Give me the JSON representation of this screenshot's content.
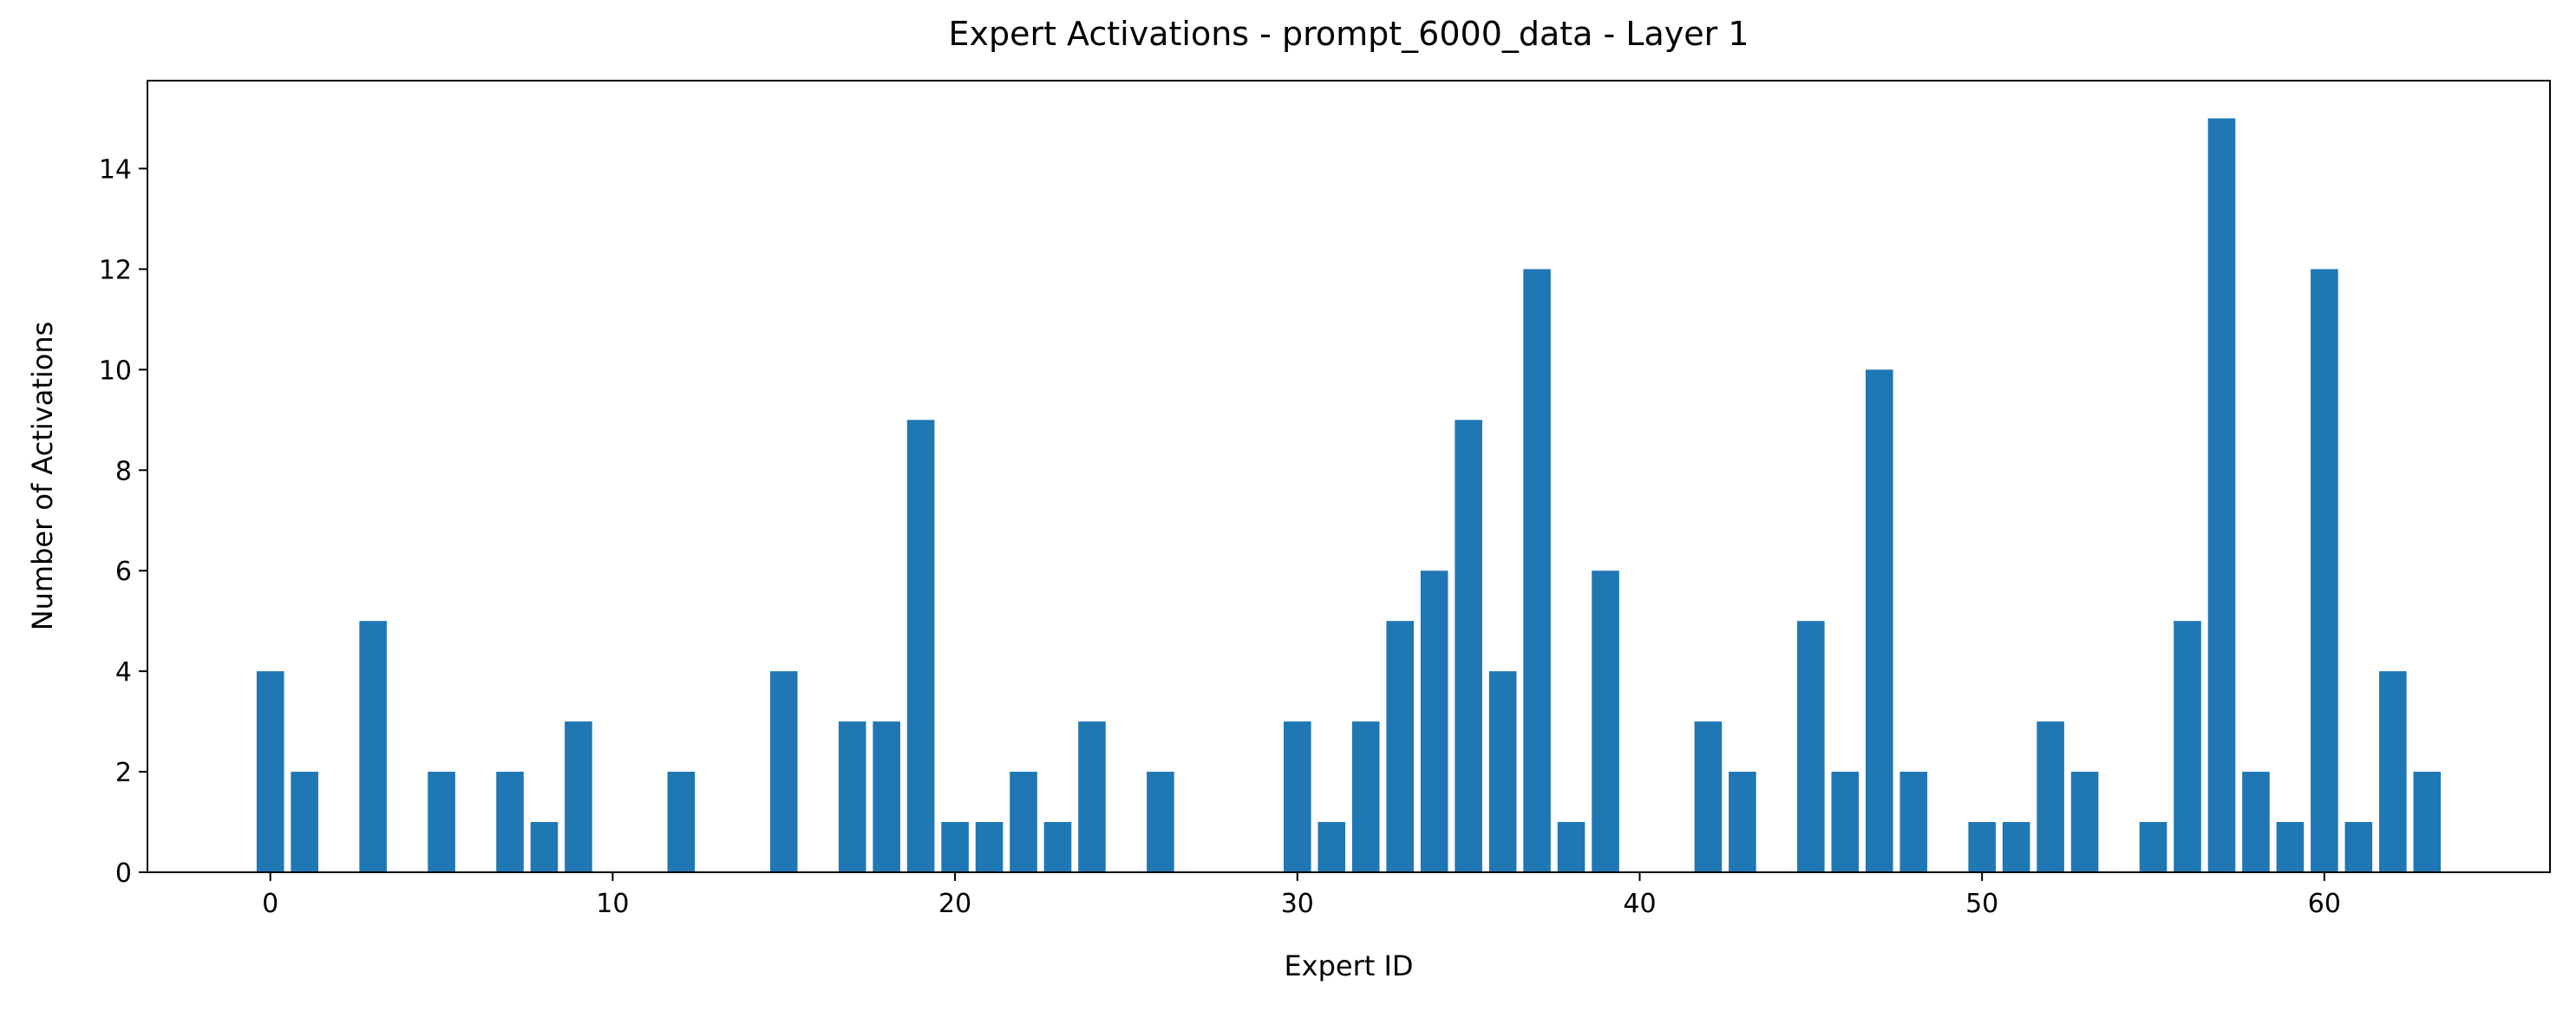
{
  "chart_data": {
    "type": "bar",
    "title": "Expert Activations - prompt_6000_data - Layer 1",
    "x_label": "Expert ID",
    "y_label": "Number of Activations",
    "x": [
      0,
      1,
      2,
      3,
      4,
      5,
      6,
      7,
      8,
      9,
      10,
      11,
      12,
      13,
      14,
      15,
      16,
      17,
      18,
      19,
      20,
      21,
      22,
      23,
      24,
      25,
      26,
      27,
      28,
      29,
      30,
      31,
      32,
      33,
      34,
      35,
      36,
      37,
      38,
      39,
      40,
      41,
      42,
      43,
      44,
      45,
      46,
      47,
      48,
      49,
      50,
      51,
      52,
      53,
      54,
      55,
      56,
      57,
      58,
      59,
      60,
      61,
      62,
      63
    ],
    "values": [
      4,
      2,
      0,
      5,
      0,
      2,
      0,
      2,
      1,
      3,
      0,
      0,
      2,
      0,
      0,
      4,
      0,
      3,
      3,
      9,
      1,
      1,
      2,
      1,
      3,
      0,
      2,
      0,
      0,
      0,
      3,
      1,
      3,
      5,
      6,
      9,
      4,
      12,
      1,
      6,
      0,
      0,
      3,
      2,
      0,
      5,
      2,
      10,
      2,
      0,
      1,
      1,
      3,
      2,
      0,
      1,
      5,
      15,
      2,
      1,
      12,
      1,
      4,
      2
    ],
    "color": "#1f77b4",
    "xlim": [
      -3.59,
      66.59
    ],
    "xticks": [
      0,
      10,
      20,
      30,
      40,
      50,
      60
    ],
    "ylim": [
      0,
      15.75
    ],
    "yticks": [
      0,
      2,
      4,
      6,
      8,
      10,
      12,
      14
    ]
  }
}
